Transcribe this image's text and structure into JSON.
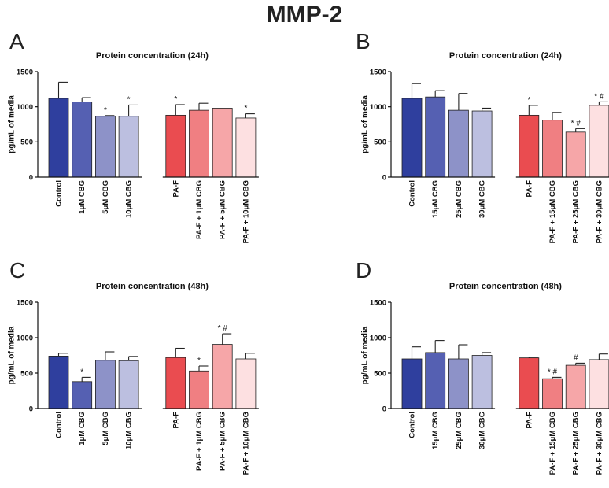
{
  "figure_title": "MMP-2",
  "colors": {
    "blue": [
      "#2f3f9e",
      "#5560b2",
      "#8d92c8",
      "#bcbfe0"
    ],
    "red": [
      "#ea4c50",
      "#f07f82",
      "#f6a6a8",
      "#fde0e1"
    ]
  },
  "chart_data": [
    {
      "panel": "A",
      "type": "bar",
      "title": "Protein concentration (24h)",
      "ylabel": "pg/mL of media",
      "ylim": [
        0,
        1500
      ],
      "yticks": [
        "0",
        "500",
        "1000",
        "1500"
      ],
      "categories": [
        "Control",
        "1μM CBG",
        "5μM CBG",
        "10μM CBG",
        "PA-F",
        "PA-F + 1μM CBG",
        "PA-F + 5μM CBG",
        "PA-F + 10μM CBG"
      ],
      "values": [
        1120,
        1070,
        865,
        865,
        880,
        950,
        980,
        840
      ],
      "errors": [
        230,
        60,
        10,
        160,
        150,
        100,
        0,
        60
      ],
      "annotations": [
        "",
        "",
        "*",
        "*",
        "*",
        "",
        "",
        "*"
      ]
    },
    {
      "panel": "B",
      "type": "bar",
      "title": "Protein concentration (24h)",
      "ylabel": "pg/mL of media",
      "ylim": [
        0,
        1500
      ],
      "yticks": [
        "0",
        "500",
        "1000",
        "1500"
      ],
      "categories": [
        "Control",
        "15μM CBG",
        "25μM CBG",
        "30μM CBG",
        "PA-F",
        "PA-F + 15μM CBG",
        "PA-F + 25μM CBG",
        "PA-F + 30μM CBG"
      ],
      "values": [
        1120,
        1140,
        950,
        940,
        880,
        810,
        640,
        1020
      ],
      "errors": [
        210,
        90,
        240,
        40,
        140,
        110,
        50,
        50
      ],
      "annotations": [
        "",
        "",
        "",
        "",
        "*",
        "",
        "* #",
        "* #"
      ]
    },
    {
      "panel": "C",
      "type": "bar",
      "title": "Protein concentration (48h)",
      "ylabel": "pg/mL of media",
      "ylim": [
        0,
        1500
      ],
      "yticks": [
        "0",
        "500",
        "1000",
        "1500"
      ],
      "categories": [
        "Control",
        "1μM CBG",
        "5μM CBG",
        "10μM CBG",
        "PA-F",
        "PA-F + 1μM CBG",
        "PA-F + 5μM CBG",
        "PA-F + 10μM CBG"
      ],
      "values": [
        740,
        380,
        680,
        675,
        720,
        530,
        905,
        700
      ],
      "errors": [
        40,
        60,
        120,
        60,
        130,
        70,
        150,
        80
      ],
      "annotations": [
        "",
        "*",
        "",
        "",
        "",
        "*",
        "* #",
        ""
      ]
    },
    {
      "panel": "D",
      "type": "bar",
      "title": "Protein concentration (48h)",
      "ylabel": "pg/mL of media",
      "ylim": [
        0,
        1500
      ],
      "yticks": [
        "0",
        "500",
        "1000",
        "1500"
      ],
      "categories": [
        "Control",
        "15μM CBG",
        "25μM CBG",
        "30μM CBG",
        "PA-F",
        "PA-F + 15μM CBG",
        "PA-F + 25μM CBG",
        "PA-F + 30μM CBG"
      ],
      "values": [
        700,
        790,
        700,
        750,
        715,
        420,
        610,
        690
      ],
      "errors": [
        170,
        170,
        200,
        40,
        10,
        20,
        30,
        80
      ],
      "annotations": [
        "",
        "",
        "",
        "",
        "",
        "* #",
        "#",
        ""
      ]
    }
  ]
}
